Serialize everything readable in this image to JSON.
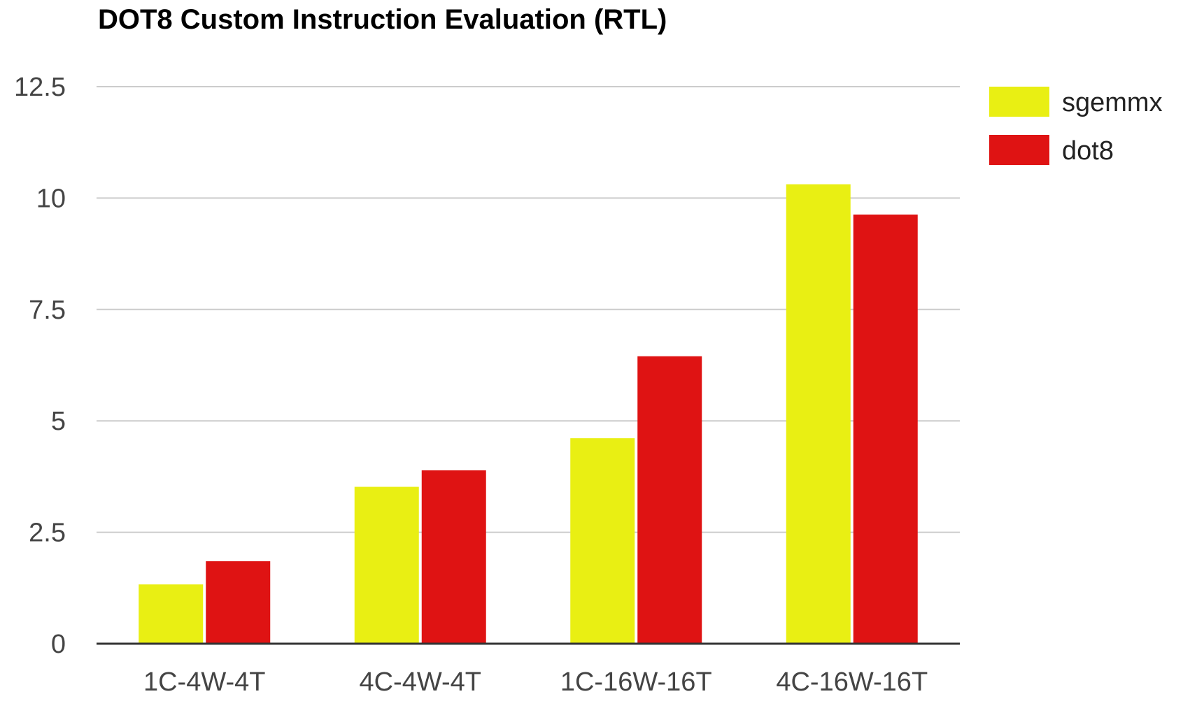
{
  "chart_data": {
    "type": "bar",
    "title": "DOT8 Custom Instruction Evaluation (RTL)",
    "xlabel": "",
    "ylabel": "",
    "categories": [
      "1C-4W-4T",
      "4C-4W-4T",
      "1C-16W-16T",
      "4C-16W-16T"
    ],
    "series": [
      {
        "name": "sgemmx",
        "color": "#e9ef13",
        "values": [
          1.33,
          3.52,
          4.61,
          10.31
        ]
      },
      {
        "name": "dot8",
        "color": "#df1313",
        "values": [
          1.85,
          3.89,
          6.45,
          9.63
        ]
      }
    ],
    "ylim": [
      0,
      12.5
    ],
    "yticks": [
      "0",
      "2.5",
      "5",
      "7.5",
      "10",
      "12.5"
    ],
    "grid": true,
    "legend": "top-right"
  }
}
